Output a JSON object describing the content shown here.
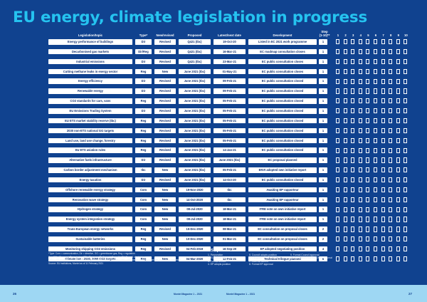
{
  "title": "EU energy, climate legislation in progress",
  "columns": {
    "topic": "Legislation/topic",
    "type": "Type*",
    "status": "New/revised",
    "proposed": "Proposed",
    "latest": "Latest/next date",
    "development": "Development",
    "step": "Step\n(1-10)**",
    "step_numbers": [
      "1",
      "2",
      "3",
      "4",
      "5",
      "6",
      "7",
      "8",
      "9",
      "10"
    ]
  },
  "rows": [
    {
      "topic": "Energy performance of buildings",
      "type": "Dir",
      "status": "Revised",
      "proposed": "Q421 (tbc)",
      "latest": "19-Oct-20",
      "development": "Listed in EC 2021 work programme",
      "step": "1"
    },
    {
      "topic": "Decarbonised gas markets",
      "type": "Dir/Reg",
      "status": "Revised",
      "proposed": "Q421 (tbc)",
      "latest": "16-Mar-21",
      "development": "EC roadmap consultation closes",
      "step": "1"
    },
    {
      "topic": "Industrial emissions",
      "type": "Dir",
      "status": "Revised",
      "proposed": "Q421 (tbc)",
      "latest": "23-Mar-21",
      "development": "EC public consultation closes",
      "step": "1"
    },
    {
      "topic": "Cutting methane leaks in energy sector",
      "type": "Reg",
      "status": "New",
      "proposed": "June 2021 (tbc)",
      "latest": "01-May-21",
      "development": "EC public consultation closes",
      "step": "1"
    },
    {
      "topic": "Energy efficiency",
      "type": "Dir",
      "status": "Revised",
      "proposed": "June 2021 (tbc)",
      "latest": "09-Feb-21",
      "development": "EC public consultation closed",
      "step": "1"
    },
    {
      "topic": "Renewable energy",
      "type": "Dir",
      "status": "Revised",
      "proposed": "June 2021 (tbc)",
      "latest": "09-Feb-21",
      "development": "EC public consultation closed",
      "step": "1"
    },
    {
      "topic": "CO2 standards for cars, vans",
      "type": "Reg",
      "status": "Revised",
      "proposed": "June 2021 (tbc)",
      "latest": "05-Feb-21",
      "development": "EC public consultation closed",
      "step": "1"
    },
    {
      "topic": "EU Emissions Trading System",
      "type": "Dir",
      "status": "Revised",
      "proposed": "June 2021 (tbc)",
      "latest": "05-Feb-21",
      "development": "EC public consultation closed",
      "step": "1"
    },
    {
      "topic": "EU ETS market stability reserve (tbc)",
      "type": "Reg",
      "status": "Revised",
      "proposed": "June 2021 (tbc)",
      "latest": "05-Feb-21",
      "development": "EC public consultation closed",
      "step": "1"
    },
    {
      "topic": "2030 non-ETS national GG targets",
      "type": "Reg",
      "status": "Revised",
      "proposed": "June 2021 (tbc)",
      "latest": "05-Feb-21",
      "development": "EC public consultation closed",
      "step": "1"
    },
    {
      "topic": "Land use, land use change, forestry",
      "type": "Reg",
      "status": "Revised",
      "proposed": "June 2021 (tbc)",
      "latest": "05-Feb-21",
      "development": "EC public consultation closed",
      "step": "1"
    },
    {
      "topic": "EU ETS aviation rules",
      "type": "Reg",
      "status": "Revised",
      "proposed": "June 2021 (tbc)",
      "latest": "14-Jan-21",
      "development": "EC public consultation closed",
      "step": "1"
    },
    {
      "topic": "Alternative fuels infrastructure",
      "type": "Dir",
      "status": "Revised",
      "proposed": "June 2021 (tbc)",
      "latest": "June 2021 (tbc)",
      "development": "EC proposal planned",
      "step": "1"
    },
    {
      "topic": "Carbon border adjustment mechanism",
      "type": "tbc",
      "status": "New",
      "proposed": "June 2021 (tbc)",
      "latest": "05-Feb-21",
      "development": "ENVI adopted own initiative report",
      "step": "1"
    },
    {
      "topic": "Energy taxation",
      "type": "Dir",
      "status": "Revised",
      "proposed": "June 2021 (tbc)",
      "latest": "14-Oct-20",
      "development": "EC public consultation closed",
      "step": "1"
    },
    {
      "topic": "Offshore renewable energy strategy",
      "type": "Com",
      "status": "New",
      "proposed": "19-Nov-2020",
      "latest": "tbc",
      "development": "Awaiting EP rapporteur",
      "step": "1"
    },
    {
      "topic": "Renovation wave strategy",
      "type": "Com",
      "status": "New",
      "proposed": "14-Oct-2020",
      "latest": "tbc",
      "development": "Awaiting EP rapporteur",
      "step": "1"
    },
    {
      "topic": "Hydrogen strategy",
      "type": "Com",
      "status": "New",
      "proposed": "08-Jul-2020",
      "latest": "18-Mar-21",
      "development": "ITRE vote on own initiative report",
      "step": "1"
    },
    {
      "topic": "Energy system integration strategy",
      "type": "Com",
      "status": "New",
      "proposed": "08-Jul-2020",
      "latest": "18-Mar-21",
      "development": "ITRE vote on own initiative report",
      "step": "1"
    },
    {
      "topic": "Trans-European energy networks",
      "type": "Reg",
      "status": "Revised",
      "proposed": "15-Dec-2020",
      "latest": "08-Mar-21",
      "development": "EC consultation on proposal closes",
      "step": "2"
    },
    {
      "topic": "Sustainable batteries",
      "type": "Reg",
      "status": "New",
      "proposed": "10-Dec-2020",
      "latest": "01-Mar-21",
      "development": "EC consultation on proposal closes",
      "step": "2"
    },
    {
      "topic": "Monitoring shipping CO2 emissions",
      "type": "Reg",
      "status": "Revised",
      "proposed": "04-Feb-2019",
      "latest": "16-Sep-20",
      "development": "EP adopted negotiating position",
      "step": "4"
    },
    {
      "topic": "Climate law - 2030, 2050 CO2 targets",
      "type": "Reg",
      "status": "New",
      "proposed": "04-Mar-2020",
      "latest": "12-Feb-21",
      "development": "Technical trilogue planned",
      "step": "6"
    }
  ],
  "notes": [
    "*Type: Com = communication, Dir = directive, GG = greenhouse gas, Reg = regulation",
    "Key: EC = European Commission, EP = European Parliament, Council = EU Council of ministers,",
    "ENVI = EP environment committee, ETS = Emissions Trading System, ITRE = EP energy, industry committee, tbc = to be confirmed",
    "Source: EU institutions, Montel as of 11 February 2021"
  ],
  "steps_title": "**Steps",
  "steps": [
    "1.  Preparation",
    "2.  EC formal proposal",
    "3.  Formal debate",
    "4.  EP adopts position",
    "5.  Council adopts position",
    "6.  Trilogues",
    "7.  Informal accord",
    "8.  Formal EP approval",
    "9.  Formal Council approval",
    "10. Published in the EU Official Journal"
  ],
  "footer": {
    "page_left": "26",
    "page_right": "27",
    "pub_left": "Montel Magazine 1 – 2021",
    "pub_right": "Montel Magazine 1 – 2021"
  },
  "colors": {
    "background": "#10428f",
    "title": "#25c3f0",
    "cell": "#ffffff",
    "cell_text": "#0f2e6e",
    "footer": "#9ed7f3"
  }
}
